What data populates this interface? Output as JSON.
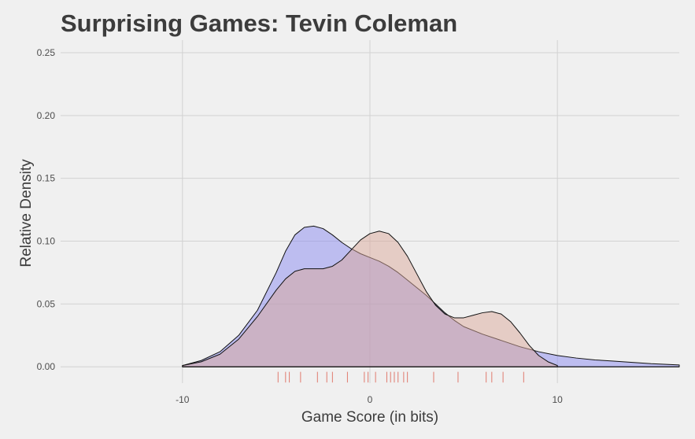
{
  "chart_data": {
    "type": "area",
    "title": "Surprising Games: Tevin Coleman",
    "xlabel": "Game Score (in bits)",
    "ylabel": "Relative Density",
    "xlim": [
      -16.5,
      16.5
    ],
    "ylim": [
      -0.013,
      0.26
    ],
    "x_ticks": [
      -10,
      0,
      10
    ],
    "x_tick_labels": [
      "-10",
      "0",
      "10"
    ],
    "y_ticks": [
      0,
      0.05,
      0.1,
      0.15,
      0.2,
      0.25
    ],
    "y_tick_labels": [
      "0.00",
      "0.05",
      "0.10",
      "0.15",
      "0.20",
      "0.25"
    ],
    "grid": true,
    "legend": "none",
    "series": [
      {
        "color": "#8a8af0",
        "x": [
          -10,
          -9,
          -8,
          -7,
          -6,
          -5,
          -4.5,
          -4,
          -3.5,
          -3,
          -2.5,
          -2,
          -1.5,
          -1,
          -0.5,
          0,
          0.5,
          1,
          1.5,
          2,
          2.5,
          3,
          3.5,
          4,
          4.5,
          5,
          6,
          7,
          8,
          9,
          10,
          11,
          12,
          13,
          14,
          15,
          16.5
        ],
        "y": [
          0.001,
          0.005,
          0.012,
          0.025,
          0.045,
          0.075,
          0.092,
          0.105,
          0.111,
          0.112,
          0.11,
          0.105,
          0.099,
          0.094,
          0.09,
          0.087,
          0.084,
          0.08,
          0.075,
          0.069,
          0.063,
          0.057,
          0.05,
          0.043,
          0.037,
          0.032,
          0.026,
          0.021,
          0.016,
          0.012,
          0.009,
          0.007,
          0.0055,
          0.0045,
          0.0035,
          0.0025,
          0.0015
        ]
      },
      {
        "color": "#d9a89a",
        "x": [
          -10,
          -9,
          -8,
          -7,
          -6,
          -5,
          -4.5,
          -4,
          -3.5,
          -3,
          -2.5,
          -2,
          -1.5,
          -1,
          -0.5,
          0,
          0.5,
          1,
          1.5,
          2,
          2.5,
          3,
          3.5,
          4,
          4.5,
          5,
          5.5,
          6,
          6.5,
          7,
          7.5,
          8,
          8.5,
          9,
          9.5,
          10
        ],
        "y": [
          0.001,
          0.004,
          0.01,
          0.022,
          0.04,
          0.061,
          0.07,
          0.076,
          0.078,
          0.078,
          0.078,
          0.08,
          0.085,
          0.093,
          0.101,
          0.106,
          0.108,
          0.106,
          0.099,
          0.088,
          0.074,
          0.06,
          0.049,
          0.042,
          0.039,
          0.039,
          0.041,
          0.043,
          0.044,
          0.042,
          0.036,
          0.027,
          0.017,
          0.009,
          0.004,
          0.001
        ]
      }
    ],
    "rug_x": [
      -4.9,
      -4.5,
      -4.3,
      -3.7,
      -2.8,
      -2.3,
      -2.0,
      -1.2,
      -0.3,
      -0.1,
      0.3,
      0.9,
      1.1,
      1.3,
      1.5,
      1.8,
      2.0,
      3.4,
      4.7,
      6.2,
      6.5,
      7.1,
      8.2
    ],
    "rug_color": "#e07a6e"
  }
}
